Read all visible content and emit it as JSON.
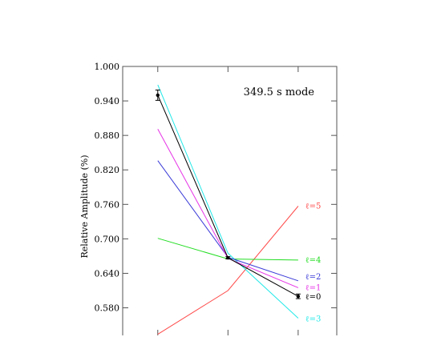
{
  "chart_data": {
    "type": "line",
    "title": "",
    "annotation": "349.5 s mode",
    "xlabel": "",
    "ylabel": "Relative Amplitude (%)",
    "x": [
      1,
      2,
      3
    ],
    "xlim": [
      0.5,
      3.55
    ],
    "ylim": [
      0.532,
      1.0
    ],
    "yticks": [
      1.0,
      0.94,
      0.88,
      0.82,
      0.76,
      0.7,
      0.64,
      0.58
    ],
    "ytick_labels": [
      "1.000",
      "0.940",
      "0.880",
      "0.820",
      "0.760",
      "0.700",
      "0.640",
      "0.580"
    ],
    "grid": false,
    "series": [
      {
        "name": "ℓ=5",
        "color": "#ff4a4a",
        "values": [
          0.534,
          0.61,
          0.757
        ]
      },
      {
        "name": "ℓ=4",
        "color": "#22dd22",
        "values": [
          0.701,
          0.665,
          0.663
        ]
      },
      {
        "name": "ℓ=3",
        "color": "#22e8e8",
        "values": [
          0.968,
          0.675,
          0.562
        ]
      },
      {
        "name": "ℓ=2",
        "color": "#3a3ad8",
        "values": [
          0.836,
          0.668,
          0.627
        ]
      },
      {
        "name": "ℓ=1",
        "color": "#e633e6",
        "values": [
          0.891,
          0.666,
          0.615
        ]
      },
      {
        "name": "ℓ=0",
        "color": "#000000",
        "values": [
          0.95,
          0.667,
          0.6
        ]
      }
    ],
    "observed": {
      "values": [
        0.95,
        0.667,
        0.6
      ],
      "errors": [
        0.009,
        0.002,
        0.004
      ],
      "color": "#000000"
    }
  }
}
